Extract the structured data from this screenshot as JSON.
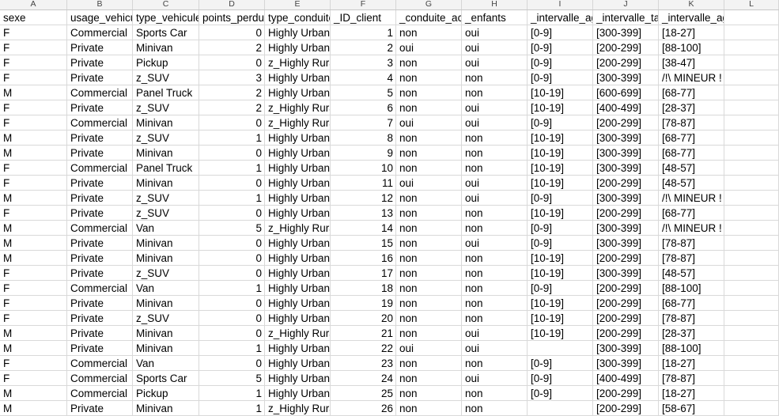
{
  "column_letters": [
    "A",
    "B",
    "C",
    "D",
    "E",
    "F",
    "G",
    "H",
    "I",
    "J",
    "K",
    "L"
  ],
  "headers": [
    "sexe",
    "usage_vehicule",
    "type_vehicule",
    "points_perdus",
    "type_conduite",
    "_ID_client",
    "_conduite_accompagnee",
    "_enfants",
    "_intervalle_age_vehicule",
    "_intervalle_taille",
    "_intervalle_age_client",
    ""
  ],
  "rows": [
    [
      "F",
      "Commercial",
      "Sports Car",
      "0",
      "Highly Urban,",
      "1",
      "non",
      "oui",
      "[0-9]",
      "[300-399]",
      "[18-27]"
    ],
    [
      "F",
      "Private",
      "Minivan",
      "2",
      "Highly Urban,",
      "2",
      "oui",
      "oui",
      "[0-9]",
      "[200-299]",
      "[88-100]"
    ],
    [
      "F",
      "Private",
      "Pickup",
      "0",
      "z_Highly Rural",
      "3",
      "non",
      "oui",
      "[0-9]",
      "[200-299]",
      "[38-47]"
    ],
    [
      "F",
      "Private",
      "z_SUV",
      "3",
      "Highly Urban,",
      "4",
      "non",
      "non",
      "[0-9]",
      "[300-399]",
      "/!\\ MINEUR !"
    ],
    [
      "M",
      "Commercial",
      "Panel Truck",
      "2",
      "Highly Urban,",
      "5",
      "non",
      "non",
      "[10-19]",
      "[600-699]",
      "[68-77]"
    ],
    [
      "F",
      "Private",
      "z_SUV",
      "2",
      "z_Highly Rural",
      "6",
      "non",
      "oui",
      "[10-19]",
      "[400-499]",
      "[28-37]"
    ],
    [
      "F",
      "Commercial",
      "Minivan",
      "0",
      "z_Highly Rural",
      "7",
      "oui",
      "oui",
      "[0-9]",
      "[200-299]",
      "[78-87]"
    ],
    [
      "M",
      "Private",
      "z_SUV",
      "1",
      "Highly Urban,",
      "8",
      "non",
      "non",
      "[10-19]",
      "[300-399]",
      "[68-77]"
    ],
    [
      "M",
      "Private",
      "Minivan",
      "0",
      "Highly Urban,",
      "9",
      "non",
      "non",
      "[10-19]",
      "[300-399]",
      "[68-77]"
    ],
    [
      "F",
      "Commercial",
      "Panel Truck",
      "1",
      "Highly Urban,",
      "10",
      "non",
      "non",
      "[10-19]",
      "[300-399]",
      "[48-57]"
    ],
    [
      "F",
      "Private",
      "Minivan",
      "0",
      "Highly Urban,",
      "11",
      "oui",
      "oui",
      "[10-19]",
      "[200-299]",
      "[48-57]"
    ],
    [
      "M",
      "Private",
      "z_SUV",
      "1",
      "Highly Urban,",
      "12",
      "non",
      "oui",
      "[0-9]",
      "[300-399]",
      "/!\\ MINEUR !"
    ],
    [
      "F",
      "Private",
      "z_SUV",
      "0",
      "Highly Urban,",
      "13",
      "non",
      "non",
      "[10-19]",
      "[200-299]",
      "[68-77]"
    ],
    [
      "M",
      "Commercial",
      "Van",
      "5",
      "z_Highly Rural",
      "14",
      "non",
      "non",
      "[0-9]",
      "[300-399]",
      "/!\\ MINEUR !"
    ],
    [
      "M",
      "Private",
      "Minivan",
      "0",
      "Highly Urban,",
      "15",
      "non",
      "oui",
      "[0-9]",
      "[300-399]",
      "[78-87]"
    ],
    [
      "M",
      "Private",
      "Minivan",
      "0",
      "Highly Urban,",
      "16",
      "non",
      "non",
      "[10-19]",
      "[200-299]",
      "[78-87]"
    ],
    [
      "F",
      "Private",
      "z_SUV",
      "0",
      "Highly Urban,",
      "17",
      "non",
      "non",
      "[10-19]",
      "[300-399]",
      "[48-57]"
    ],
    [
      "F",
      "Commercial",
      "Van",
      "1",
      "Highly Urban,",
      "18",
      "non",
      "non",
      "[0-9]",
      "[200-299]",
      "[88-100]"
    ],
    [
      "F",
      "Private",
      "Minivan",
      "0",
      "Highly Urban,",
      "19",
      "non",
      "non",
      "[10-19]",
      "[200-299]",
      "[68-77]"
    ],
    [
      "F",
      "Private",
      "z_SUV",
      "0",
      "Highly Urban,",
      "20",
      "non",
      "non",
      "[10-19]",
      "[200-299]",
      "[78-87]"
    ],
    [
      "M",
      "Private",
      "Minivan",
      "0",
      "z_Highly Rural",
      "21",
      "non",
      "oui",
      "[10-19]",
      "[200-299]",
      "[28-37]"
    ],
    [
      "M",
      "Private",
      "Minivan",
      "1",
      "Highly Urban,",
      "22",
      "oui",
      "oui",
      "",
      "[300-399]",
      "[88-100]"
    ],
    [
      "F",
      "Commercial",
      "Van",
      "0",
      "Highly Urban,",
      "23",
      "non",
      "non",
      "[0-9]",
      "[300-399]",
      "[18-27]"
    ],
    [
      "F",
      "Commercial",
      "Sports Car",
      "5",
      "Highly Urban,",
      "24",
      "non",
      "oui",
      "[0-9]",
      "[400-499]",
      "[78-87]"
    ],
    [
      "M",
      "Commercial",
      "Pickup",
      "1",
      "Highly Urban,",
      "25",
      "non",
      "non",
      "[0-9]",
      "[200-299]",
      "[18-27]"
    ],
    [
      "M",
      "Private",
      "Minivan",
      "1",
      "z_Highly Rural",
      "26",
      "non",
      "non",
      "",
      "[200-299]",
      "[58-67]"
    ]
  ]
}
